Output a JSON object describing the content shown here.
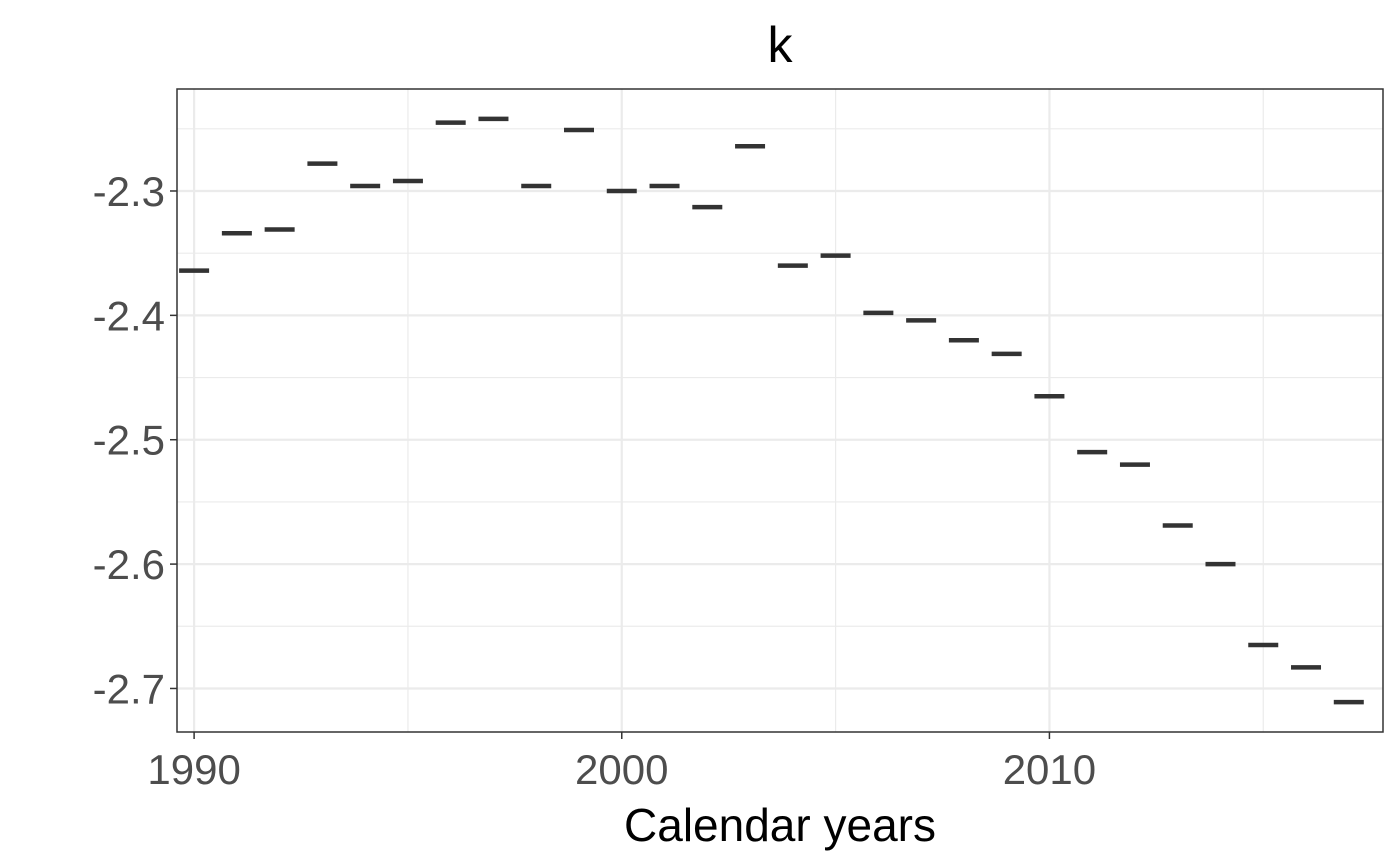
{
  "chart_data": {
    "type": "scatter",
    "marker": "horizontal-dash",
    "title": "k",
    "xlabel": "Calendar years",
    "ylabel": "",
    "xlim": [
      1989.6,
      2017.8
    ],
    "ylim": [
      -2.735,
      -2.218
    ],
    "x_ticks": [
      1990,
      2000,
      2010
    ],
    "x_tick_labels": [
      "1990",
      "2000",
      "2010"
    ],
    "y_ticks": [
      -2.7,
      -2.6,
      -2.5,
      -2.4,
      -2.3
    ],
    "y_tick_labels": [
      "-2.7",
      "-2.6",
      "-2.5",
      "-2.4",
      "-2.3"
    ],
    "grid": true,
    "colors": {
      "mark": "#333333",
      "grid": "#ebebeb",
      "axis_text": "#4d4d4d"
    },
    "series": [
      {
        "x": [
          1990,
          1991,
          1992,
          1993,
          1994,
          1995,
          1996,
          1997,
          1998,
          1999,
          2000,
          2001,
          2002,
          2003,
          2004,
          2005,
          2006,
          2007,
          2008,
          2009,
          2010,
          2011,
          2012,
          2013,
          2014,
          2015,
          2016,
          2017
        ],
        "y": [
          -2.364,
          -2.334,
          -2.331,
          -2.278,
          -2.296,
          -2.292,
          -2.245,
          -2.242,
          -2.296,
          -2.251,
          -2.3,
          -2.296,
          -2.313,
          -2.264,
          -2.36,
          -2.352,
          -2.398,
          -2.404,
          -2.42,
          -2.431,
          -2.465,
          -2.51,
          -2.52,
          -2.569,
          -2.6,
          -2.665,
          -2.683,
          -2.711
        ]
      }
    ]
  }
}
